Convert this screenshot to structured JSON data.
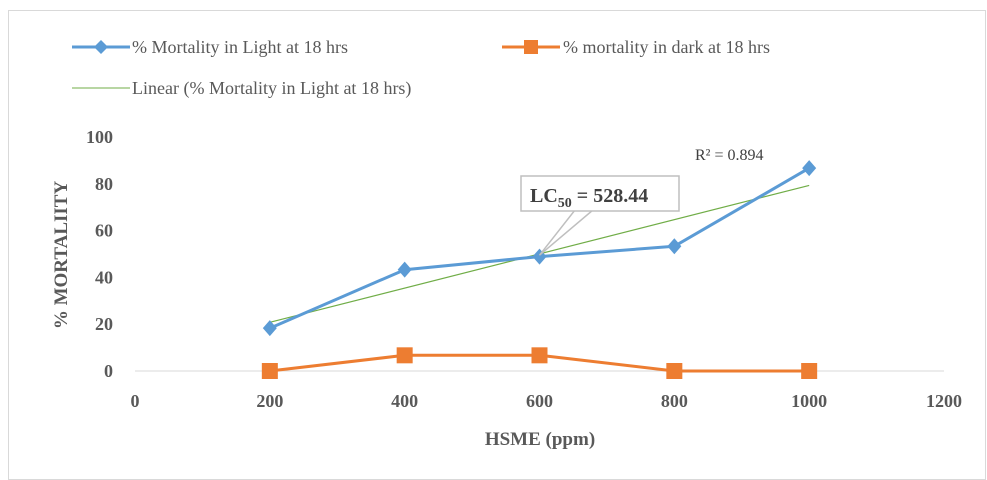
{
  "chart_data": {
    "type": "line",
    "xlabel": "HSME (ppm)",
    "ylabel": "% MORTALIITY",
    "xlim": [
      0,
      1200
    ],
    "ylim": [
      0,
      100
    ],
    "x_ticks": [
      0,
      200,
      400,
      600,
      800,
      1000,
      1200
    ],
    "y_ticks": [
      0,
      20,
      40,
      60,
      80,
      100
    ],
    "x_tick_labels": [
      "0",
      "200",
      "400",
      "600",
      "800",
      "1000",
      "1200"
    ],
    "y_tick_labels": [
      "0",
      "20",
      "40",
      "60",
      "80",
      "100"
    ],
    "grid": false,
    "legend_position": "top",
    "series": [
      {
        "name": "% Mortality in Light at 18 hrs",
        "color": "#5b9bd5",
        "marker": "diamond",
        "points": [
          [
            200,
            18.3
          ],
          [
            400,
            43.3
          ],
          [
            600,
            48.9
          ],
          [
            800,
            53.3
          ],
          [
            1000,
            86.7
          ]
        ]
      },
      {
        "name": "% mortality in dark at 18 hrs",
        "color": "#ed7d31",
        "marker": "square",
        "points": [
          [
            200,
            0
          ],
          [
            400,
            6.7
          ],
          [
            600,
            6.7
          ],
          [
            800,
            0
          ],
          [
            1000,
            0
          ]
        ]
      }
    ],
    "trendline": {
      "name": "Linear (% Mortality in Light at 18 hrs)",
      "color": "#70ad47",
      "type": "linear",
      "from": [
        200,
        20.8
      ],
      "to": [
        1000,
        79.3
      ]
    },
    "annotations": {
      "r_squared": "R² = 0.894",
      "lc50_prefix": "LC",
      "lc50_subscript": "50",
      "lc50_value": " = 528.44",
      "lc50_anchor": [
        600,
        49.5
      ]
    }
  }
}
